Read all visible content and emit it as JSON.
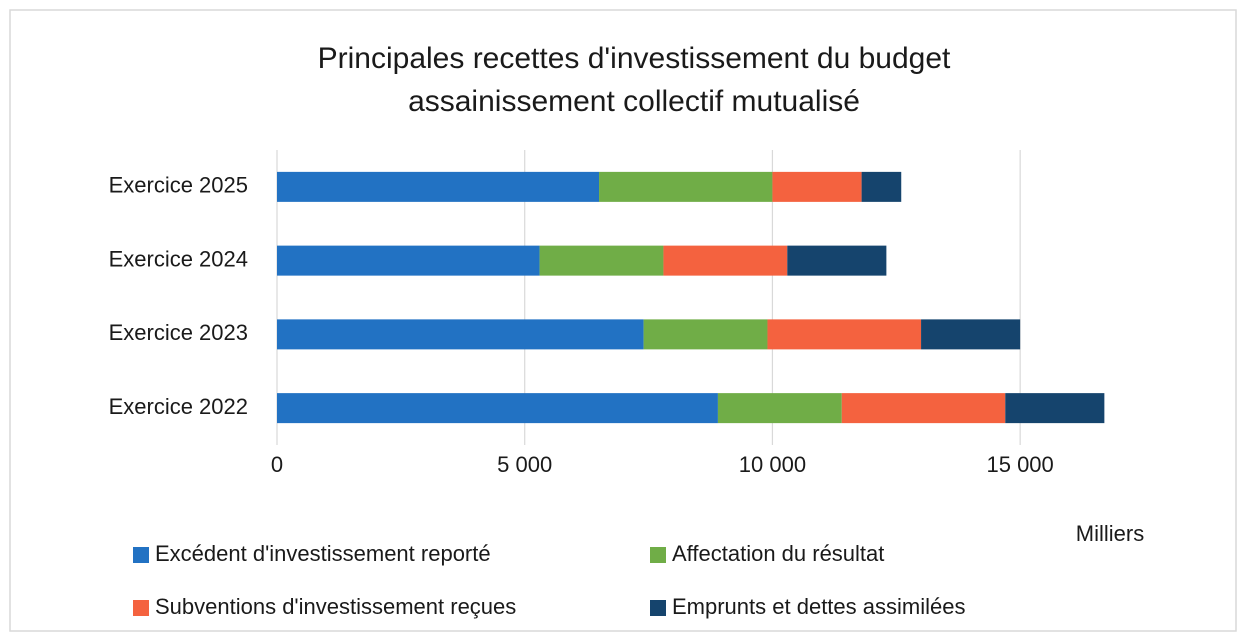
{
  "chart_data": {
    "type": "stacked_barh",
    "title": [
      "Principales recettes d'investissement du budget",
      "assainissement collectif mutualisé"
    ],
    "categories": [
      "Exercice 2025",
      "Exercice 2024",
      "Exercice 2023",
      "Exercice 2022"
    ],
    "series": [
      {
        "name": "Excédent d'investissement reporté",
        "color": "#2272c3",
        "values": [
          6500,
          5300,
          7400,
          8900
        ]
      },
      {
        "name": "Affectation du résultat",
        "color": "#70ad47",
        "values": [
          3500,
          2500,
          2500,
          2500
        ]
      },
      {
        "name": "Subventions d'investissement reçues",
        "color": "#f4623f",
        "values": [
          1800,
          2500,
          3100,
          3300
        ]
      },
      {
        "name": "Emprunts et dettes assimilées",
        "color": "#15446d",
        "values": [
          800,
          2000,
          2000,
          2000
        ]
      }
    ],
    "xlim": [
      0,
      17500
    ],
    "xticks": [
      0,
      {
        "value": 5000,
        "label": "5 000"
      },
      {
        "value": 10000,
        "label": "10 000"
      },
      {
        "value": 15000,
        "label": "15 000"
      }
    ],
    "x_unit_label": "Milliers",
    "grid": true,
    "legend": "bottom"
  }
}
